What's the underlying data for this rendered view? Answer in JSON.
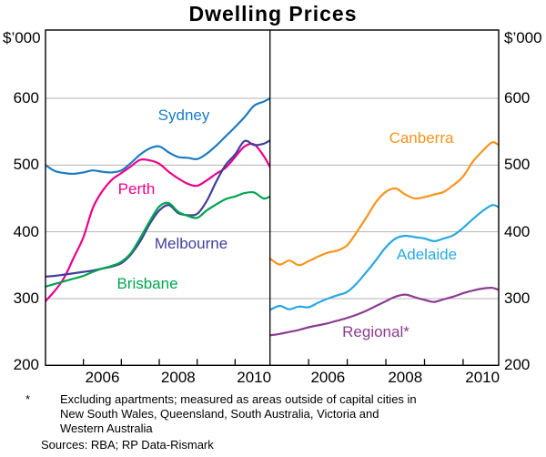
{
  "title": "Dwelling Prices",
  "unit_left": "$’000",
  "unit_right": "$’000",
  "footnote": {
    "marker": "*",
    "lines": [
      "Excluding apartments; measured as areas outside of capital cities in",
      "New South Wales, Queensland, South Australia, Victoria and",
      "Western Australia"
    ],
    "sources": "Sources: RBA; RP Data-Rismark"
  },
  "chart_data": {
    "type": "line",
    "title": "Dwelling Prices",
    "ylabel": "$’000",
    "ylim": [
      200,
      700
    ],
    "y_ticks": [
      200,
      300,
      400,
      500,
      600
    ],
    "grid": true,
    "grid_color": "#b3b3b3",
    "axis_color": "#000000",
    "x_range": [
      2005.0,
      2010.92
    ],
    "x_axis_tick_years": [
      2006,
      2007,
      2008,
      2009,
      2010
    ],
    "x_label_years": [
      "2006",
      "2008",
      "2010"
    ],
    "x": [
      2005.0,
      2005.25,
      2005.5,
      2005.75,
      2006.0,
      2006.25,
      2006.5,
      2006.75,
      2007.0,
      2007.25,
      2007.5,
      2007.75,
      2008.0,
      2008.25,
      2008.5,
      2008.75,
      2009.0,
      2009.25,
      2009.5,
      2009.75,
      2010.0,
      2010.25,
      2010.5,
      2010.75,
      2010.92
    ],
    "panels": [
      {
        "name": "left-panel",
        "series": [
          {
            "name": "Sydney",
            "label": "Sydney",
            "color": "#1a7cc2",
            "values": [
              500,
              491,
              488,
              487,
              489,
              492,
              490,
              489,
              492,
              503,
              516,
              525,
              528,
              519,
              512,
              511,
              509,
              517,
              529,
              543,
              557,
              572,
              589,
              595,
              600
            ]
          },
          {
            "name": "Perth",
            "label": "Perth",
            "color": "#ec008c",
            "values": [
              296,
              312,
              332,
              362,
              392,
              436,
              461,
              478,
              488,
              498,
              508,
              507,
              502,
              490,
              480,
              472,
              469,
              477,
              487,
              496,
              512,
              528,
              531,
              514,
              497
            ]
          },
          {
            "name": "Melbourne",
            "label": "Melbourne",
            "color": "#3f3f99",
            "values": [
              333,
              334,
              336,
              338,
              340,
              342,
              345,
              348,
              353,
              366,
              386,
              412,
              432,
              440,
              428,
              425,
              427,
              446,
              475,
              500,
              516,
              536,
              530,
              532,
              537
            ]
          },
          {
            "name": "Brisbane",
            "label": "Brisbane",
            "color": "#00a550",
            "values": [
              318,
              322,
              326,
              330,
              334,
              340,
              345,
              349,
              355,
              368,
              391,
              416,
              438,
              443,
              430,
              424,
              421,
              432,
              441,
              449,
              453,
              458,
              459,
              450,
              453
            ]
          }
        ]
      },
      {
        "name": "right-panel",
        "series": [
          {
            "name": "Canberra",
            "label": "Canberra",
            "color": "#f7941d",
            "values": [
              360,
              351,
              357,
              350,
              356,
              363,
              369,
              372,
              380,
              400,
              422,
              445,
              460,
              465,
              456,
              450,
              452,
              456,
              460,
              470,
              483,
              505,
              521,
              534,
              530
            ]
          },
          {
            "name": "Adelaide",
            "label": "Adelaide",
            "color": "#29a8e0",
            "values": [
              283,
              289,
              284,
              288,
              287,
              294,
              300,
              305,
              310,
              323,
              340,
              358,
              377,
              390,
              394,
              392,
              390,
              386,
              390,
              395,
              406,
              419,
              431,
              440,
              437
            ]
          },
          {
            "name": "Regional",
            "label": "Regional*",
            "color": "#8c3c91",
            "values": [
              245,
              247,
              250,
              253,
              257,
              260,
              263,
              267,
              271,
              276,
              282,
              289,
              296,
              303,
              306,
              302,
              298,
              295,
              299,
              303,
              308,
              312,
              315,
              316,
              313
            ]
          }
        ]
      }
    ]
  }
}
